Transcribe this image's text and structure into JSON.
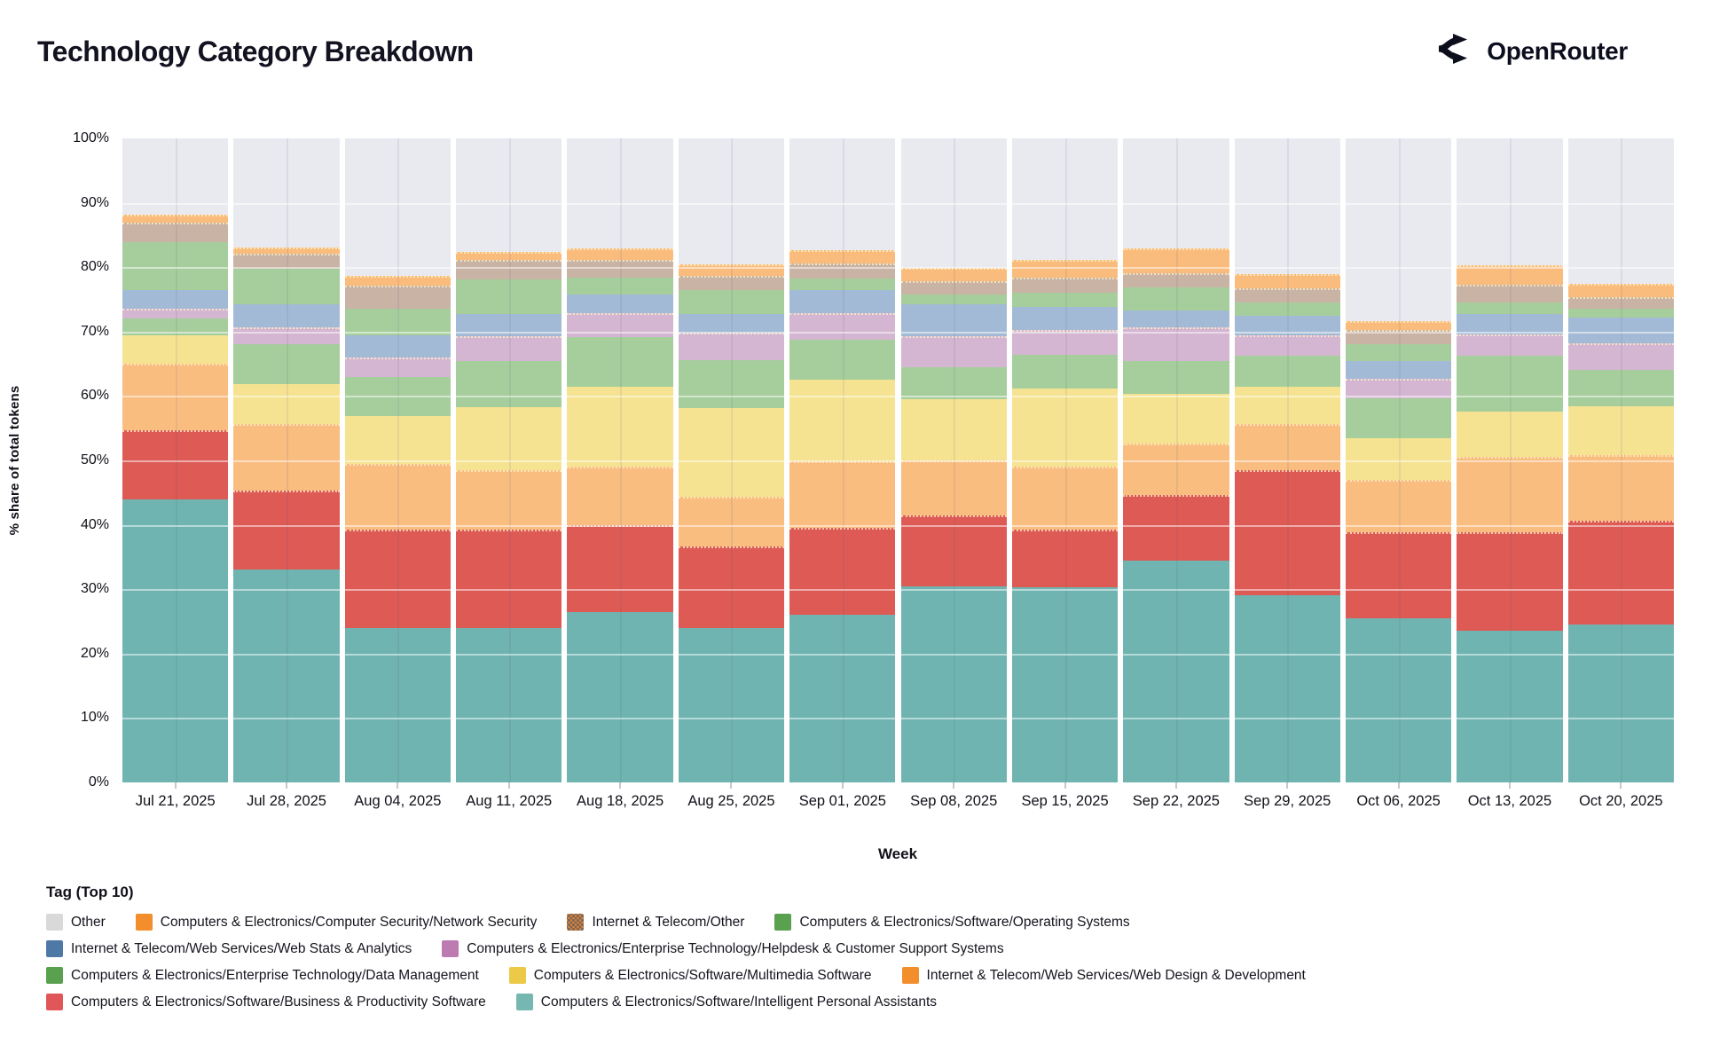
{
  "header": {
    "title": "Technology Category Breakdown",
    "brand": "OpenRouter"
  },
  "chart_data": {
    "type": "bar",
    "stacked": true,
    "normalized": true,
    "title": "Technology Category Breakdown",
    "xlabel": "Week",
    "ylabel": "% share of total tokens",
    "ylim": [
      0,
      100
    ],
    "yticks": [
      0,
      10,
      20,
      30,
      40,
      50,
      60,
      70,
      80,
      90,
      100
    ],
    "ytick_suffix": "%",
    "grid": true,
    "categories": [
      "Jul 21, 2025",
      "Jul 28, 2025",
      "Aug 04, 2025",
      "Aug 11, 2025",
      "Aug 18, 2025",
      "Aug 25, 2025",
      "Sep 01, 2025",
      "Sep 08, 2025",
      "Sep 15, 2025",
      "Sep 22, 2025",
      "Sep 29, 2025",
      "Oct 06, 2025",
      "Oct 13, 2025",
      "Oct 20, 2025"
    ],
    "series": [
      {
        "name": "Computers & Electronics/Software/Intelligent Personal Assistants",
        "bar_color": "#6fb4b0",
        "values": [
          44,
          33,
          24,
          24,
          26.5,
          24,
          26,
          30.5,
          30.3,
          34.5,
          29,
          25.5,
          23.5,
          24.5
        ]
      },
      {
        "name": "Computers & Electronics/Software/Business & Productivity Software",
        "bar_color": "#dd5a55",
        "edge": true,
        "values": [
          10.7,
          12.3,
          15.3,
          15.2,
          13.5,
          12.6,
          13.5,
          11,
          9,
          10.1,
          19.5,
          13.4,
          15.4,
          16.1
        ]
      },
      {
        "name": "Internet & Telecom/Web Services/Web Design & Development",
        "bar_color": "#f9bd80",
        "edge": true,
        "values": [
          10.3,
          10.4,
          10.1,
          9.3,
          9.1,
          7.8,
          10.3,
          8.5,
          9.8,
          8,
          7.1,
          8.1,
          11.6,
          10.2
        ]
      },
      {
        "name": "Computers & Electronics/Software/Multimedia Software",
        "bar_color": "#f5e392",
        "values": [
          4.4,
          6.2,
          7.5,
          9.8,
          12.3,
          13.7,
          12.8,
          9.5,
          12,
          7.8,
          5.8,
          6.5,
          7.1,
          7.6
        ]
      },
      {
        "name": "Computers & Electronics/Enterprise Technology/Data Management",
        "bar_color": "#a6ce9c",
        "values": [
          2.6,
          6.2,
          6.1,
          7.1,
          7.7,
          7.5,
          6.1,
          5,
          5.3,
          5,
          4.9,
          6.1,
          8.7,
          5.7
        ]
      },
      {
        "name": "Computers & Electronics/Enterprise Technology/Helpdesk & Customer Support Systems",
        "bar_color": "#d4b6d2",
        "pattern": "dots",
        "edge": true,
        "values": [
          1.5,
          2.6,
          3,
          3.9,
          3.8,
          4.2,
          4.2,
          4.8,
          3.8,
          5.3,
          3.2,
          3.1,
          3.3,
          4.1
        ]
      },
      {
        "name": "Internet & Telecom/Web Services/Web Stats & Analytics",
        "bar_color": "#a3bad6",
        "values": [
          2.9,
          3.5,
          3.5,
          3.4,
          2.9,
          3,
          3.6,
          4.9,
          3.7,
          2.6,
          3,
          2.7,
          3.2,
          4
        ]
      },
      {
        "name": "Computers & Electronics/Software/Operating Systems",
        "bar_color": "#a6ce9c",
        "values": [
          7.5,
          5.6,
          4.1,
          5.4,
          2.6,
          3.7,
          1.7,
          1.5,
          2.1,
          3.5,
          2,
          2.7,
          1.7,
          1.3
        ]
      },
      {
        "name": "Internet & Telecom/Other",
        "bar_color": "#c9b3a5",
        "pattern": "dots",
        "edge": true,
        "values": [
          3,
          2.3,
          3.6,
          3,
          2.8,
          2.1,
          2.4,
          2.2,
          2.4,
          2.3,
          2.2,
          2.2,
          2.8,
          1.9
        ]
      },
      {
        "name": "Computers & Electronics/Computer Security/Network Security",
        "bar_color": "#f9bc7c",
        "edge": true,
        "values": [
          1.2,
          1,
          1.4,
          1.3,
          1.8,
          1.8,
          2,
          2,
          2.8,
          3.8,
          2.2,
          1.4,
          3,
          2
        ]
      },
      {
        "name": "Other",
        "bar_color": "#e9eaef",
        "values": [
          11.9,
          16.9,
          21.4,
          17.6,
          17,
          19.6,
          17.4,
          20.1,
          18.8,
          17.1,
          21.1,
          28.3,
          19.7,
          22.6
        ]
      }
    ],
    "legend": {
      "title": "Tag (Top 10)",
      "position": "bottom-left",
      "items": [
        {
          "label": "Other",
          "color": "#d9d9d9"
        },
        {
          "label": "Computers & Electronics/Computer Security/Network Security",
          "color": "#f28e2b"
        },
        {
          "label": "Internet & Telecom/Other",
          "color": "#f28e2b",
          "pattern": "dots"
        },
        {
          "label": "Computers & Electronics/Software/Operating Systems",
          "color": "#59a14f"
        },
        {
          "label": "Internet & Telecom/Web Services/Web Stats & Analytics",
          "color": "#4e79a7"
        },
        {
          "label": "Computers & Electronics/Enterprise Technology/Helpdesk & Customer Support Systems",
          "color": "#bc7bb1"
        },
        {
          "label": "Computers & Electronics/Enterprise Technology/Data Management",
          "color": "#59a14f"
        },
        {
          "label": "Computers & Electronics/Software/Multimedia Software",
          "color": "#edc948"
        },
        {
          "label": "Internet & Telecom/Web Services/Web Design & Development",
          "color": "#f28e2b"
        },
        {
          "label": "Computers & Electronics/Software/Business & Productivity Software",
          "color": "#e15759"
        },
        {
          "label": "Computers & Electronics/Software/Intelligent Personal Assistants",
          "color": "#76b7b2"
        }
      ],
      "rows": [
        [
          0,
          1,
          2,
          3
        ],
        [
          4,
          5
        ],
        [
          6,
          7,
          8
        ],
        [
          9,
          10
        ]
      ]
    }
  }
}
